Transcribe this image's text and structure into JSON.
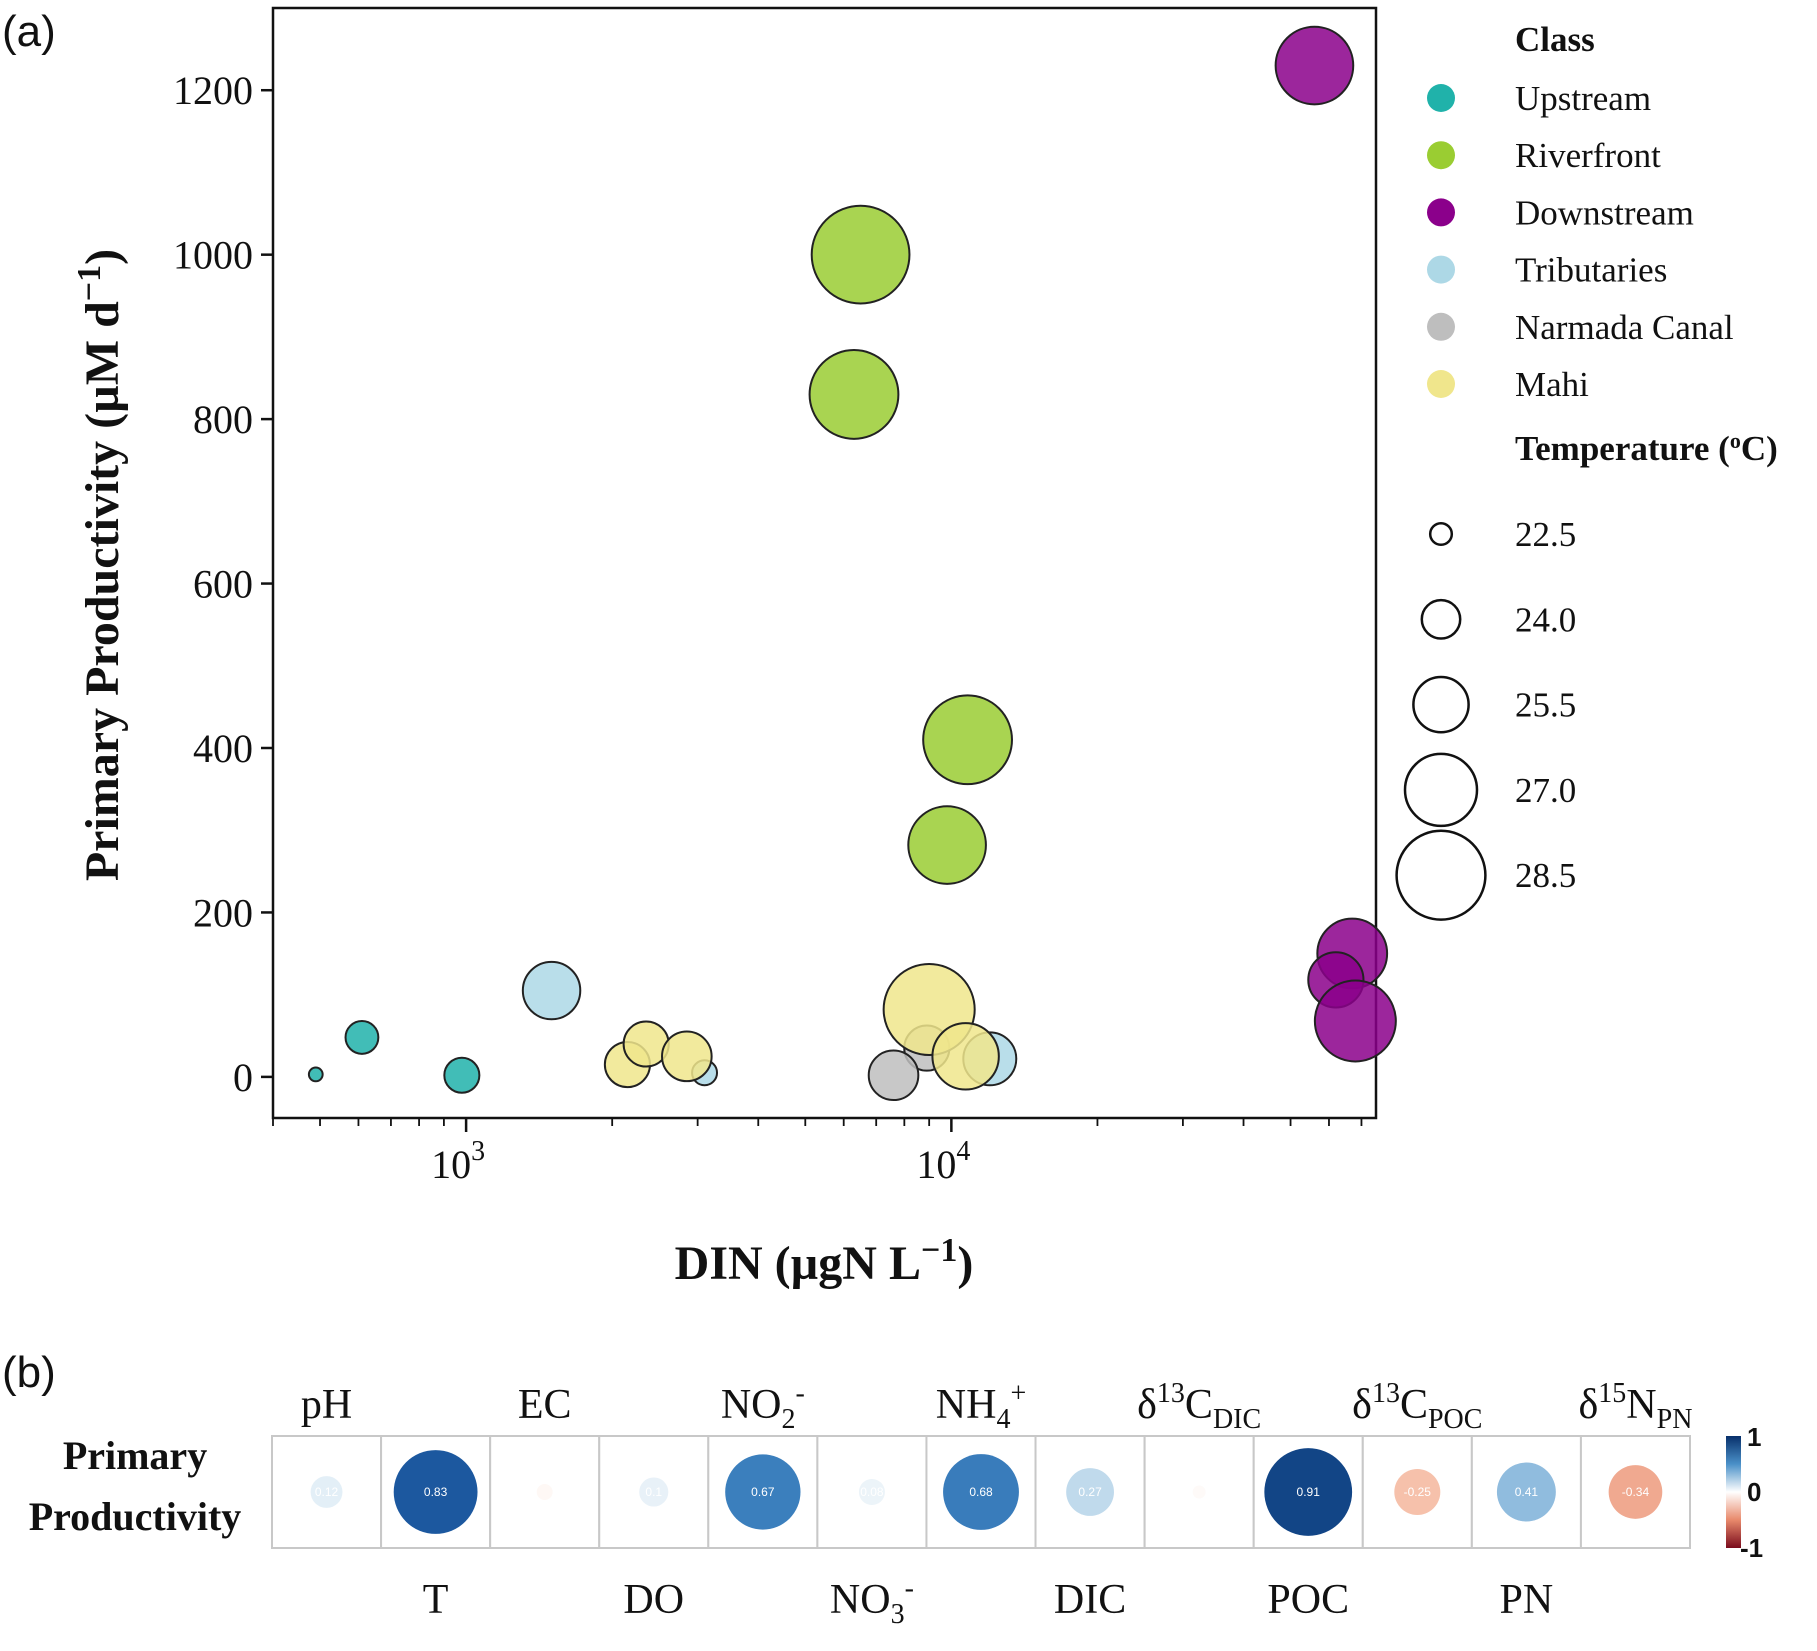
{
  "chart_data": [
    {
      "panel": "(a)",
      "type": "scatter",
      "xlabel": "DIN (µgN L⁻¹)",
      "ylabel": "Primary Productivity (µM d⁻¹)",
      "xscale": "log",
      "xlim": [
        400,
        75000
      ],
      "ylim": [
        -50,
        1300
      ],
      "x_ticks": [
        1000,
        10000
      ],
      "x_tick_labels": [
        "10",
        "10"
      ],
      "x_tick_exponents": [
        "3",
        "4"
      ],
      "y_ticks": [
        0,
        200,
        400,
        600,
        800,
        1000,
        1200
      ],
      "y_tick_labels": [
        "0",
        "200",
        "400",
        "600",
        "800",
        "1000",
        "1200"
      ],
      "grid": false,
      "legend_placement": "outside-right",
      "legend": {
        "class_title": "Class",
        "size_title": "Temperature (⁰C)",
        "size_entries": [
          "22.5",
          "24.0",
          "25.5",
          "27.0",
          "28.5"
        ],
        "size_values": [
          22.5,
          24.0,
          25.5,
          27.0,
          28.5
        ]
      },
      "series": [
        {
          "name": "Upstream",
          "color": "#20b2aa",
          "points": [
            {
              "x": 490,
              "y": 3,
              "t": 21.8
            },
            {
              "x": 610,
              "y": 48,
              "t": 23.5
            },
            {
              "x": 980,
              "y": 2,
              "t": 23.7
            }
          ]
        },
        {
          "name": "Riverfront",
          "color": "#9acd32",
          "points": [
            {
              "x": 6500,
              "y": 1000,
              "t": 29.3
            },
            {
              "x": 6300,
              "y": 830,
              "t": 28.5
            },
            {
              "x": 10800,
              "y": 410,
              "t": 28.5
            },
            {
              "x": 9800,
              "y": 282,
              "t": 27.5
            }
          ]
        },
        {
          "name": "Downstream",
          "color": "#8b008b",
          "points": [
            {
              "x": 56000,
              "y": 1230,
              "t": 27.5
            },
            {
              "x": 67000,
              "y": 150,
              "t": 26.8
            },
            {
              "x": 62000,
              "y": 118,
              "t": 25.5
            },
            {
              "x": 68000,
              "y": 68,
              "t": 27.8
            }
          ]
        },
        {
          "name": "Tributaries",
          "color": "#add8e6",
          "points": [
            {
              "x": 1500,
              "y": 105,
              "t": 25.7
            },
            {
              "x": 3100,
              "y": 5,
              "t": 22.8
            },
            {
              "x": 12000,
              "y": 22,
              "t": 25.3
            }
          ]
        },
        {
          "name": "Narmada Canal",
          "color": "#bebebe",
          "points": [
            {
              "x": 8900,
              "y": 35,
              "t": 24.6
            },
            {
              "x": 7600,
              "y": 2,
              "t": 25.0
            }
          ]
        },
        {
          "name": "Mahi",
          "color": "#f0e68c",
          "points": [
            {
              "x": 2150,
              "y": 15,
              "t": 24.6
            },
            {
              "x": 2350,
              "y": 40,
              "t": 24.6
            },
            {
              "x": 2850,
              "y": 25,
              "t": 25.0
            },
            {
              "x": 9000,
              "y": 82,
              "t": 28.7
            },
            {
              "x": 10700,
              "y": 25,
              "t": 26.5
            }
          ]
        }
      ]
    },
    {
      "panel": "(b)",
      "type": "heatmap",
      "row_label_line1": "Primary",
      "row_label_line2": "Productivity",
      "colorbar": {
        "min": -1,
        "max": 1,
        "labels": [
          "1",
          "0",
          "-1"
        ]
      },
      "columns": [
        "pH",
        "T",
        "EC",
        "DO",
        "NO₂⁻",
        "NO₃⁻",
        "NH₄⁺",
        "DIC",
        "δ¹³C_DIC",
        "POC",
        "δ¹³C_POC",
        "PN",
        "δ¹⁵N_PN"
      ],
      "values": [
        0.12,
        0.83,
        -0.03,
        0.1,
        0.67,
        0.08,
        0.68,
        0.27,
        -0.02,
        0.91,
        -0.25,
        0.41,
        -0.34
      ],
      "value_labels": [
        "0.12",
        "0.83",
        "",
        "0.1",
        "0.67",
        "0.08",
        "0.68",
        "0.27",
        "",
        "0.91",
        "-0.25",
        "0.41",
        "-0.34"
      ],
      "top_labels": [
        {
          "col": 0,
          "base": "pH"
        },
        {
          "col": 2,
          "base": "EC"
        },
        {
          "col": 4,
          "base": "NO",
          "sub": "2",
          "sup": "-"
        },
        {
          "col": 6,
          "base": "NH",
          "sub": "4",
          "sup": "+"
        },
        {
          "col": 8,
          "base": "δ",
          "sup_pre": "13",
          "base2": "C",
          "sub": "DIC"
        },
        {
          "col": 10,
          "base": "δ",
          "sup_pre": "13",
          "base2": "C",
          "sub": "POC"
        },
        {
          "col": 12,
          "base": "δ",
          "sup_pre": "15",
          "base2": "N",
          "sub": "PN"
        }
      ],
      "bottom_labels": [
        {
          "col": 1,
          "base": "T"
        },
        {
          "col": 3,
          "base": "DO"
        },
        {
          "col": 5,
          "base": "NO",
          "sub": "3",
          "sup": "-"
        },
        {
          "col": 7,
          "base": "DIC"
        },
        {
          "col": 9,
          "base": "POC"
        },
        {
          "col": 11,
          "base": "PN"
        }
      ]
    }
  ],
  "labels": {
    "panel_a": "(a)",
    "panel_b": "(b)",
    "ylabel_main": "Primary Productivity (µM d",
    "ylabel_sup": "−1",
    "ylabel_close": ")",
    "xlabel_main": "DIN (µgN L",
    "xlabel_sup": "−1",
    "xlabel_close": ")",
    "temp_title_main": "Temperature (",
    "temp_title_sup": "o",
    "temp_title_close": "C)"
  }
}
